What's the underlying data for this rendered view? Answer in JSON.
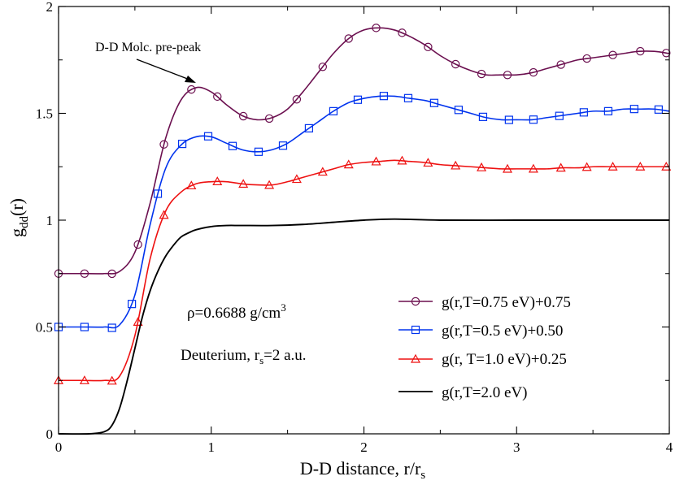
{
  "chart_data": {
    "type": "line",
    "xlabel": "D-D distance, r/r",
    "xlabel_sub": "s",
    "ylabel": "g",
    "ylabel_sub": "dd",
    "ylabel_suffix": "(r)",
    "xlim": [
      0,
      4
    ],
    "ylim": [
      0,
      2
    ],
    "xticks": [
      0,
      1,
      2,
      3,
      4
    ],
    "xtick_labels": [
      "0",
      "1",
      "2",
      "3",
      "4"
    ],
    "yticks": [
      0,
      0.5,
      1,
      1.5,
      2
    ],
    "ytick_labels": [
      "0",
      "0.5",
      "1",
      "1.5",
      "2"
    ],
    "annotations": {
      "prepeak": "D-D Molc. pre-peak",
      "density_prefix": "ρ=0.6688 g/cm",
      "density_sup": "3",
      "element_prefix": "Deuterium,  r",
      "element_sub": "s",
      "element_suffix": "=2 a.u."
    },
    "series": [
      {
        "name": "g(r,T=0.75 eV)+0.75",
        "color": "#6b0f4f",
        "marker": "circle",
        "x": [
          0.0,
          0.15,
          0.3,
          0.4,
          0.5,
          0.6,
          0.7,
          0.8,
          0.9,
          1.0,
          1.1,
          1.2,
          1.3,
          1.4,
          1.5,
          1.6,
          1.7,
          1.8,
          1.9,
          2.0,
          2.1,
          2.2,
          2.3,
          2.4,
          2.5,
          2.6,
          2.7,
          2.8,
          2.9,
          3.0,
          3.1,
          3.2,
          3.3,
          3.4,
          3.5,
          3.6,
          3.7,
          3.8,
          3.9,
          4.0
        ],
        "y": [
          0.75,
          0.75,
          0.75,
          0.76,
          0.85,
          1.08,
          1.38,
          1.56,
          1.62,
          1.6,
          1.54,
          1.49,
          1.47,
          1.48,
          1.52,
          1.6,
          1.69,
          1.78,
          1.85,
          1.89,
          1.9,
          1.89,
          1.86,
          1.82,
          1.77,
          1.73,
          1.7,
          1.68,
          1.68,
          1.68,
          1.69,
          1.71,
          1.73,
          1.75,
          1.76,
          1.77,
          1.78,
          1.79,
          1.79,
          1.78
        ],
        "marker_x": [
          0.0,
          0.17,
          0.35,
          0.52,
          0.69,
          0.87,
          1.04,
          1.21,
          1.38,
          1.56,
          1.73,
          1.9,
          2.08,
          2.25,
          2.42,
          2.6,
          2.77,
          2.94,
          3.11,
          3.29,
          3.46,
          3.63,
          3.81,
          3.98
        ]
      },
      {
        "name": "g(r,T=0.5 eV)+0.50",
        "color": "#0033ee",
        "marker": "square",
        "x": [
          0.0,
          0.15,
          0.3,
          0.4,
          0.5,
          0.6,
          0.7,
          0.8,
          0.9,
          1.0,
          1.1,
          1.2,
          1.3,
          1.4,
          1.5,
          1.6,
          1.7,
          1.8,
          1.9,
          2.0,
          2.1,
          2.2,
          2.3,
          2.4,
          2.5,
          2.6,
          2.7,
          2.8,
          2.9,
          3.0,
          3.1,
          3.2,
          3.3,
          3.4,
          3.5,
          3.6,
          3.7,
          3.8,
          3.9,
          4.0
        ],
        "y": [
          0.5,
          0.5,
          0.5,
          0.51,
          0.65,
          0.98,
          1.24,
          1.35,
          1.39,
          1.39,
          1.36,
          1.33,
          1.32,
          1.33,
          1.36,
          1.41,
          1.46,
          1.51,
          1.55,
          1.57,
          1.58,
          1.58,
          1.57,
          1.56,
          1.54,
          1.52,
          1.5,
          1.48,
          1.47,
          1.47,
          1.47,
          1.48,
          1.49,
          1.5,
          1.51,
          1.51,
          1.52,
          1.52,
          1.52,
          1.51
        ],
        "marker_x": [
          0.0,
          0.17,
          0.35,
          0.48,
          0.65,
          0.81,
          0.98,
          1.14,
          1.31,
          1.47,
          1.64,
          1.8,
          1.96,
          2.13,
          2.29,
          2.46,
          2.62,
          2.78,
          2.95,
          3.11,
          3.28,
          3.44,
          3.6,
          3.77,
          3.93
        ]
      },
      {
        "name": "g(r, T=1.0 eV)+0.25",
        "color": "#ee1111",
        "marker": "triangle",
        "x": [
          0.0,
          0.15,
          0.3,
          0.4,
          0.5,
          0.6,
          0.7,
          0.8,
          0.9,
          1.0,
          1.1,
          1.2,
          1.3,
          1.4,
          1.5,
          1.6,
          1.7,
          1.8,
          1.9,
          2.0,
          2.1,
          2.2,
          2.3,
          2.4,
          2.5,
          2.6,
          2.7,
          2.8,
          2.9,
          3.0,
          3.1,
          3.2,
          3.3,
          3.4,
          3.5,
          3.6,
          3.7,
          3.8,
          3.9,
          4.0
        ],
        "y": [
          0.25,
          0.25,
          0.25,
          0.27,
          0.46,
          0.82,
          1.04,
          1.13,
          1.17,
          1.18,
          1.18,
          1.17,
          1.165,
          1.165,
          1.18,
          1.2,
          1.22,
          1.24,
          1.26,
          1.27,
          1.275,
          1.28,
          1.275,
          1.27,
          1.26,
          1.255,
          1.25,
          1.245,
          1.24,
          1.24,
          1.24,
          1.24,
          1.245,
          1.245,
          1.25,
          1.25,
          1.25,
          1.25,
          1.25,
          1.25
        ],
        "marker_x": [
          0.0,
          0.17,
          0.35,
          0.52,
          0.69,
          0.87,
          1.04,
          1.21,
          1.38,
          1.56,
          1.73,
          1.9,
          2.08,
          2.25,
          2.42,
          2.6,
          2.77,
          2.94,
          3.11,
          3.29,
          3.46,
          3.63,
          3.81,
          3.98
        ]
      },
      {
        "name": "g(r,T=2.0 eV)",
        "color": "#000000",
        "marker": "none",
        "x": [
          0.0,
          0.2,
          0.3,
          0.35,
          0.4,
          0.45,
          0.5,
          0.55,
          0.6,
          0.65,
          0.7,
          0.75,
          0.8,
          0.85,
          0.9,
          1.0,
          1.1,
          1.2,
          1.4,
          1.6,
          1.8,
          2.0,
          2.2,
          2.5,
          3.0,
          3.5,
          4.0
        ],
        "y": [
          0.0,
          0.0,
          0.01,
          0.04,
          0.12,
          0.25,
          0.4,
          0.55,
          0.67,
          0.76,
          0.83,
          0.88,
          0.92,
          0.94,
          0.955,
          0.97,
          0.975,
          0.975,
          0.975,
          0.98,
          0.99,
          1.0,
          1.005,
          1.0,
          1.0,
          1.0,
          1.0
        ],
        "marker_x": []
      }
    ]
  }
}
